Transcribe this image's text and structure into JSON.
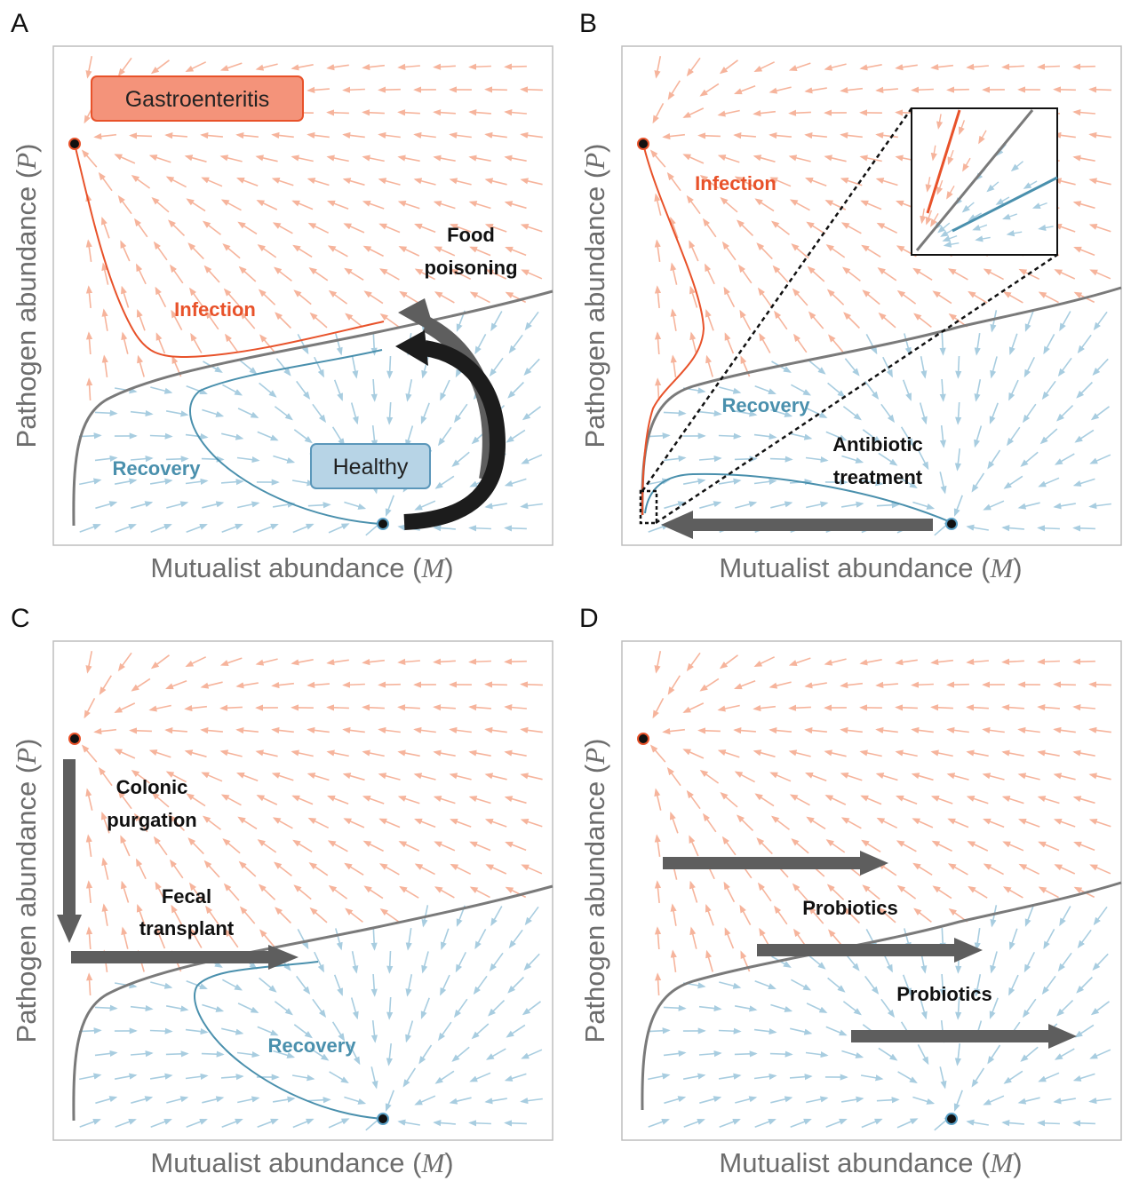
{
  "panels": [
    {
      "letter": "A",
      "xlabel": "Mutualist abundance",
      "xvar": "M",
      "ylabel": "Pathogen abundance",
      "yvar": "P",
      "labels": {
        "gastro": "Gastroenteritis",
        "healthy": "Healthy",
        "infection": "Infection",
        "recovery": "Recovery",
        "food1": "Food",
        "food2": "poisoning"
      }
    },
    {
      "letter": "B",
      "xlabel": "Mutualist abundance",
      "xvar": "M",
      "ylabel": "Pathogen abundance",
      "yvar": "P",
      "labels": {
        "infection": "Infection",
        "recovery": "Recovery",
        "anti1": "Antibiotic",
        "anti2": "treatment"
      }
    },
    {
      "letter": "C",
      "xlabel": "Mutualist abundance",
      "xvar": "M",
      "ylabel": "Pathogen abundance",
      "yvar": "P",
      "labels": {
        "colonic1": "Colonic",
        "colonic2": "purgation",
        "fecal1": "Fecal",
        "fecal2": "transplant",
        "recovery": "Recovery"
      }
    },
    {
      "letter": "D",
      "xlabel": "Mutualist abundance",
      "xvar": "M",
      "ylabel": "Pathogen abundance",
      "yvar": "P",
      "labels": {
        "probiotics1": "Probiotics",
        "probiotics2": "Probiotics"
      }
    }
  ],
  "colors": {
    "infection_text": "#e8522a",
    "infection_line": "#e8522a",
    "recovery_text": "#4a90ad",
    "recovery_line": "#4a90ad",
    "field_infection": "#f6b49c",
    "field_recovery": "#a8cde0",
    "separatrix": "#7a7a7a",
    "arrow_dark": "#222222",
    "arrow_gray": "#5e5e5e",
    "gastro_fill": "#f4937a",
    "gastro_stroke": "#e8522a",
    "healthy_fill": "#b7d4e6",
    "healthy_stroke": "#5b97ba"
  }
}
